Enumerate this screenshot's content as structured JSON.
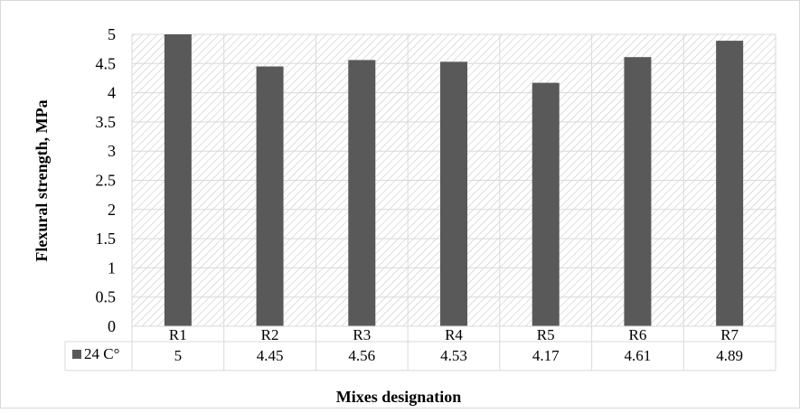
{
  "chart_data": {
    "type": "bar",
    "title": "",
    "xlabel": "Mixes designation",
    "ylabel": "Flexural strength, MPa",
    "categories": [
      "R1",
      "R2",
      "R3",
      "R4",
      "R5",
      "R6",
      "R7"
    ],
    "series": [
      {
        "name": "24 C°",
        "values": [
          5,
          4.45,
          4.56,
          4.53,
          4.17,
          4.61,
          4.89
        ]
      }
    ],
    "data_table_values": [
      "5",
      "4.45",
      "4.56",
      "4.53",
      "4.17",
      "4.61",
      "4.89"
    ],
    "y_ticks": [
      "0",
      "0.5",
      "1",
      "1.5",
      "2",
      "2.5",
      "3",
      "3.5",
      "4",
      "4.5",
      "5"
    ],
    "ylim": [
      0,
      5
    ],
    "grid": true,
    "legend": "data-table",
    "bar_color": "#595959",
    "gridline_color": "#d9d9d9",
    "plot_background": "diagonal-hatch"
  }
}
